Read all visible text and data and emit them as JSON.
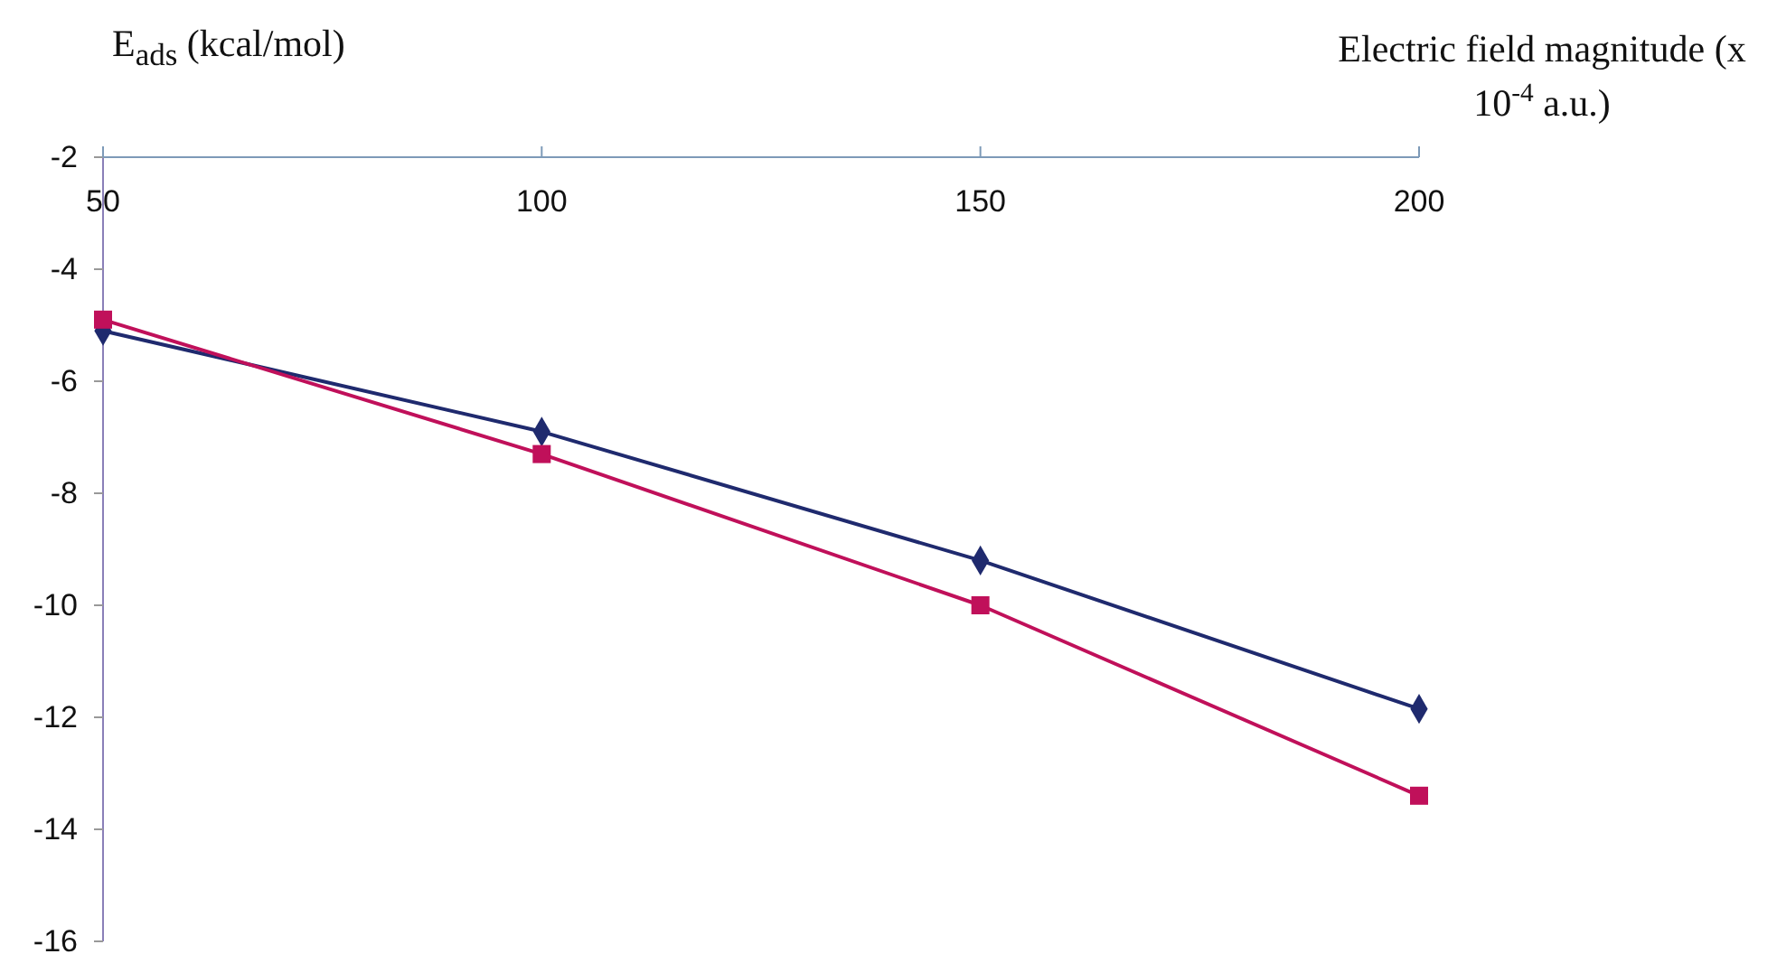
{
  "chart_data": {
    "type": "line",
    "xlabel": "Electric field magnitude (x 10$^{-4}$ a.u.)",
    "ylabel": "E$_{ads}$ (kcal/mol)",
    "x": [
      50,
      100,
      150,
      200
    ],
    "series": [
      {
        "color": "#1f2a6e",
        "marker": "diamond",
        "values": [
          -5.1,
          -6.9,
          -9.2,
          -11.85
        ]
      },
      {
        "color": "#c0105a",
        "marker": "square",
        "values": [
          -4.9,
          -7.3,
          -10.0,
          -13.4
        ]
      }
    ],
    "xlim": [
      50,
      200
    ],
    "xticks": [
      50,
      100,
      150,
      200
    ],
    "ylim": [
      -16,
      -2
    ],
    "yticks": [
      -2,
      -4,
      -6,
      -8,
      -10,
      -12,
      -14,
      -16
    ],
    "grid": false
  }
}
